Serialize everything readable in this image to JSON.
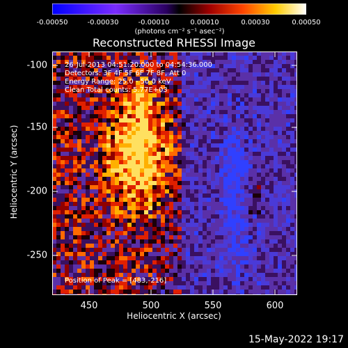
{
  "colorbar": {
    "ticks": [
      "-0.00050",
      "-0.00030",
      "-0.00010",
      "0.00010",
      "0.00030",
      "0.00050"
    ],
    "units": "(photons cm⁻² s⁻¹ asec⁻²)"
  },
  "title": "Reconstructed RHESSI Image",
  "annotations": {
    "time": "26-Jul-2013 04:51:20.000 to 04:54:36.000",
    "detectors": "Detectors: 3F 4F 5F 6F 7F 8F, Att 0",
    "energy": "Energy Range: 25.0 - 50.0 keV",
    "clean": "Clean     Total counts: 5.77E+03",
    "peak": "Position of Peak = [483,-216]"
  },
  "axes": {
    "xlabel": "Heliocentric X (arcsec)",
    "ylabel": "Heliocentric Y (arcsec)",
    "xticks": [
      "450",
      "500",
      "550",
      "600"
    ],
    "yticks": [
      "-100",
      "-150",
      "-200",
      "-250"
    ]
  },
  "timestamp": "15-May-2022 19:17"
}
